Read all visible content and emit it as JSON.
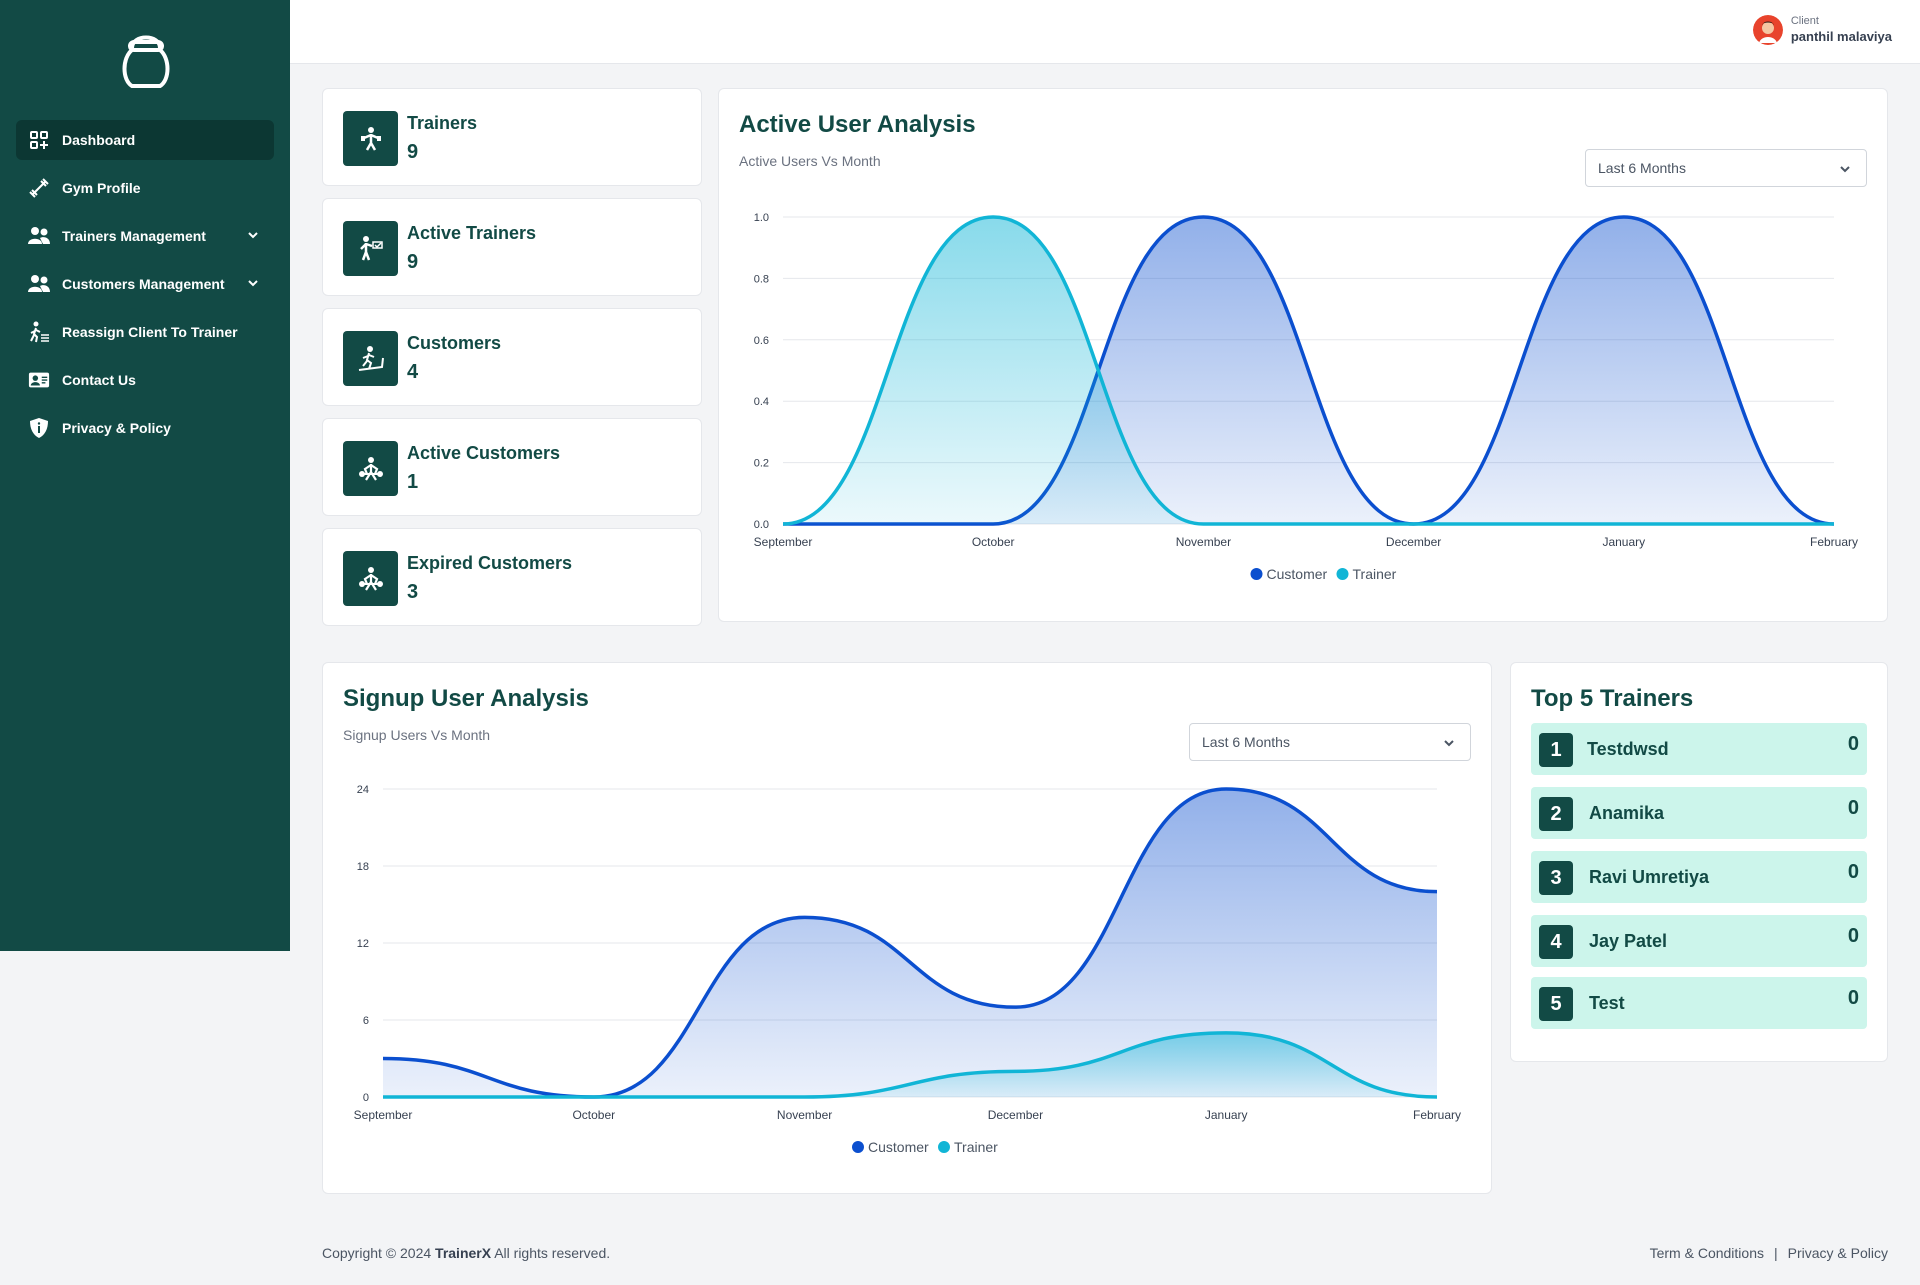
{
  "sidebar": {
    "items": [
      {
        "label": "Dashboard",
        "icon": "dashboard-icon",
        "active": true
      },
      {
        "label": "Gym Profile",
        "icon": "dumbbell-icon"
      },
      {
        "label": "Trainers Management",
        "icon": "users-icon",
        "expandable": true
      },
      {
        "label": "Customers Management",
        "icon": "users-icon",
        "expandable": true
      },
      {
        "label": "Reassign Client To Trainer",
        "icon": "walking-icon"
      },
      {
        "label": "Contact Us",
        "icon": "contact-card-icon"
      },
      {
        "label": "Privacy & Policy",
        "icon": "shield-icon"
      }
    ]
  },
  "header": {
    "user_role": "Client",
    "user_name": "panthil malaviya"
  },
  "stats": [
    {
      "label": "Trainers",
      "value": "9",
      "icon": "trainer-icon"
    },
    {
      "label": "Active Trainers",
      "value": "9",
      "icon": "active-trainer-icon"
    },
    {
      "label": "Customers",
      "value": "4",
      "icon": "treadmill-icon"
    },
    {
      "label": "Active Customers",
      "value": "1",
      "icon": "weightlifter-icon"
    },
    {
      "label": "Expired Customers",
      "value": "3",
      "icon": "weightlifter-icon"
    }
  ],
  "active_chart": {
    "title": "Active User Analysis",
    "subtitle": "Active Users Vs Month",
    "range_select": "Last 6 Months"
  },
  "signup_chart": {
    "title": "Signup User Analysis",
    "subtitle": "Signup Users Vs Month",
    "range_select": "Last 6 Months"
  },
  "chart_data": [
    {
      "type": "area",
      "title": "Active User Analysis",
      "categories": [
        "September",
        "October",
        "November",
        "December",
        "January",
        "February"
      ],
      "ylim": [
        0,
        1
      ],
      "yticks": [
        "0.0",
        "0.2",
        "0.4",
        "0.6",
        "0.8",
        "1.0"
      ],
      "legend": "bottom",
      "series": [
        {
          "name": "Customer",
          "values": [
            0,
            0,
            1,
            0,
            1,
            0
          ],
          "color": "#0b4fcf"
        },
        {
          "name": "Trainer",
          "values": [
            0,
            1,
            0,
            0,
            0,
            0
          ],
          "color": "#11b5d6"
        }
      ]
    },
    {
      "type": "area",
      "title": "Signup User Analysis",
      "categories": [
        "September",
        "October",
        "November",
        "December",
        "January",
        "February"
      ],
      "ylim": [
        0,
        24
      ],
      "yticks": [
        "0",
        "6",
        "12",
        "18",
        "24"
      ],
      "legend": "bottom",
      "series": [
        {
          "name": "Customer",
          "values": [
            3,
            0,
            14,
            7,
            24,
            16
          ],
          "color": "#0b4fcf"
        },
        {
          "name": "Trainer",
          "values": [
            0,
            0,
            0,
            2,
            5,
            0
          ],
          "color": "#11b5d6"
        }
      ]
    }
  ],
  "top_trainers": {
    "title": "Top 5 Trainers",
    "items": [
      {
        "rank": "1",
        "name": "Testdwsd",
        "value": "0"
      },
      {
        "rank": "2",
        "name": "Anamika",
        "value": "0"
      },
      {
        "rank": "3",
        "name": "Ravi Umretiya",
        "value": "0"
      },
      {
        "rank": "4",
        "name": "Jay Patel",
        "value": "0"
      },
      {
        "rank": "5",
        "name": "Test",
        "value": "0"
      }
    ]
  },
  "footer": {
    "copyright_prefix": "Copyright © 2024",
    "brand": "TrainerX",
    "copyright_suffix": "All rights reserved.",
    "links": [
      "Term & Conditions",
      "Privacy & Policy"
    ]
  }
}
